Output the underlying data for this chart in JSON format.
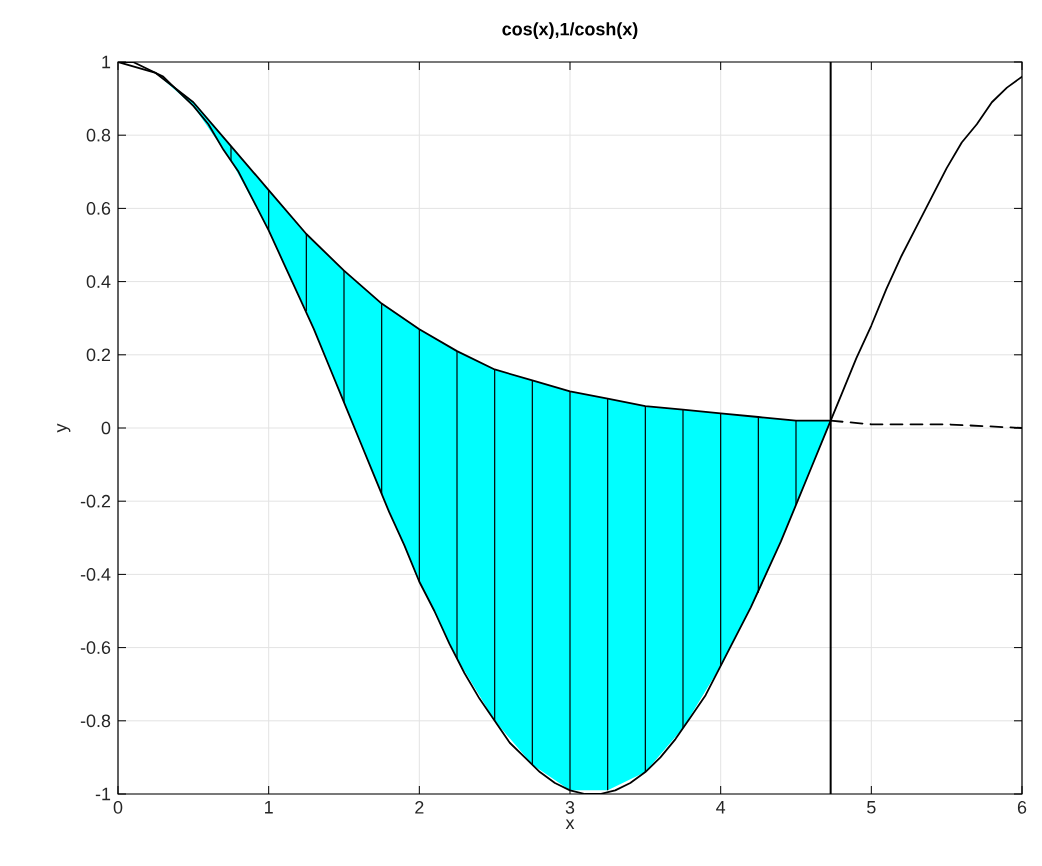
{
  "chart_data": {
    "type": "line",
    "title": "cos(x),1/cosh(x)",
    "xlabel": "x",
    "ylabel": "y",
    "xlim": [
      0,
      6
    ],
    "ylim": [
      -1,
      1
    ],
    "xticks": [
      0,
      1,
      2,
      3,
      4,
      5,
      6
    ],
    "yticks": [
      -1,
      -0.8,
      -0.6,
      -0.4,
      -0.2,
      0,
      0.2,
      0.4,
      0.6,
      0.8,
      1
    ],
    "grid": true,
    "series": [
      {
        "color": "#000000",
        "line_style": "solid",
        "x": [
          0,
          0.1,
          0.2,
          0.3,
          0.4,
          0.5,
          0.6,
          0.7,
          0.8,
          0.9,
          1,
          1.1,
          1.2,
          1.3,
          1.4,
          1.5,
          1.6,
          1.7,
          1.8,
          1.9,
          2,
          2.1,
          2.2,
          2.3,
          2.4,
          2.5,
          2.6,
          2.7,
          2.8,
          2.9,
          3,
          3.1,
          3.2,
          3.3,
          3.4,
          3.5,
          3.6,
          3.7,
          3.8,
          3.9,
          4,
          4.1,
          4.2,
          4.3,
          4.4,
          4.5,
          4.6,
          4.7,
          4.8,
          4.9,
          5,
          5.1,
          5.2,
          5.3,
          5.4,
          5.5,
          5.6,
          5.7,
          5.8,
          5.9,
          6
        ],
        "values": [
          1,
          1,
          0.98,
          0.96,
          0.92,
          0.88,
          0.83,
          0.76,
          0.7,
          0.62,
          0.54,
          0.45,
          0.36,
          0.27,
          0.17,
          0.07,
          -0.03,
          -0.13,
          -0.23,
          -0.32,
          -0.42,
          -0.5,
          -0.59,
          -0.67,
          -0.74,
          -0.8,
          -0.86,
          -0.9,
          -0.94,
          -0.97,
          -0.99,
          -1,
          -1,
          -0.99,
          -0.97,
          -0.94,
          -0.9,
          -0.85,
          -0.79,
          -0.73,
          -0.65,
          -0.57,
          -0.49,
          -0.4,
          -0.31,
          -0.21,
          -0.11,
          -0.01,
          0.09,
          0.19,
          0.28,
          0.38,
          0.47,
          0.55,
          0.63,
          0.71,
          0.78,
          0.83,
          0.89,
          0.93,
          0.96
        ]
      },
      {
        "color": "#000000",
        "line_style": "solid",
        "x": [
          0,
          0.25,
          0.5,
          0.75,
          1,
          1.25,
          1.5,
          1.75,
          2,
          2.25,
          2.5,
          2.75,
          3,
          3.25,
          3.5,
          3.75,
          4,
          4.25,
          4.5,
          4.73
        ],
        "values": [
          1,
          0.97,
          0.89,
          0.77,
          0.65,
          0.53,
          0.43,
          0.34,
          0.27,
          0.21,
          0.16,
          0.13,
          0.1,
          0.08,
          0.06,
          0.05,
          0.04,
          0.03,
          0.02,
          0.02
        ],
        "lower": [
          1,
          0.97,
          0.88,
          0.73,
          0.54,
          0.32,
          0.07,
          -0.18,
          -0.42,
          -0.63,
          -0.8,
          -0.92,
          -0.99,
          -0.99,
          -0.94,
          -0.82,
          -0.65,
          -0.45,
          -0.21,
          0.02
        ],
        "upper": [
          1,
          0.97,
          0.89,
          0.77,
          0.65,
          0.53,
          0.43,
          0.34,
          0.27,
          0.21,
          0.16,
          0.13,
          0.1,
          0.08,
          0.06,
          0.05,
          0.04,
          0.03,
          0.02,
          0.02
        ],
        "errors": [
          null,
          null,
          null,
          [
            0.73,
            0.77
          ],
          [
            0.54,
            0.65
          ],
          [
            0.32,
            0.53
          ],
          [
            0.07,
            0.43
          ],
          [
            -0.18,
            0.34
          ],
          [
            -0.42,
            0.27
          ],
          [
            -0.63,
            0.21
          ],
          [
            -0.8,
            0.16
          ],
          [
            -0.92,
            0.13
          ],
          [
            -0.99,
            0.1
          ],
          [
            -0.99,
            0.08
          ],
          [
            -0.94,
            0.06
          ],
          [
            -0.82,
            0.05
          ],
          [
            -0.65,
            0.04
          ],
          [
            -0.45,
            0.03
          ],
          [
            -0.21,
            0.02
          ],
          null
        ]
      },
      {
        "color": "#000000",
        "line_style": "dashed",
        "x": [
          4.73,
          5,
          5.5,
          6
        ],
        "values": [
          0.02,
          0.01,
          0.01,
          0
        ]
      }
    ],
    "ref_lines": [
      {
        "axis": "x",
        "value": 4.73,
        "color": "#000000",
        "line_style": "solid"
      }
    ]
  }
}
